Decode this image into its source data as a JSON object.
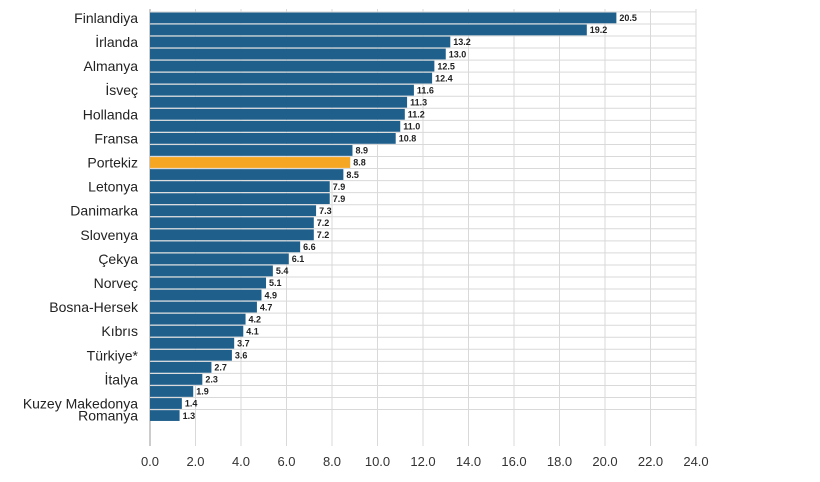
{
  "chart_data": {
    "type": "bar",
    "orientation": "horizontal",
    "title": "",
    "xlabel": "",
    "ylabel": "",
    "xlim": [
      0,
      24
    ],
    "ticks": [
      "0.0",
      "2.0",
      "4.0",
      "6.0",
      "8.0",
      "10.0",
      "12.0",
      "14.0",
      "16.0",
      "18.0",
      "20.0",
      "22.0",
      "24.0"
    ],
    "grid": true,
    "colors": {
      "default": "#1f5f8b",
      "highlight": "#f5a623"
    },
    "bars": [
      {
        "label": "Finlandiya",
        "value": 20.5,
        "value_label": "20.5"
      },
      {
        "label": "",
        "value": 19.2,
        "value_label": "19.2"
      },
      {
        "label": "İrlanda",
        "value": 13.2,
        "value_label": "13.2"
      },
      {
        "label": "",
        "value": 13.0,
        "value_label": "13.0"
      },
      {
        "label": "Almanya",
        "value": 12.5,
        "value_label": "12.5"
      },
      {
        "label": "",
        "value": 12.4,
        "value_label": "12.4"
      },
      {
        "label": "İsveç",
        "value": 11.6,
        "value_label": "11.6"
      },
      {
        "label": "",
        "value": 11.3,
        "value_label": "11.3"
      },
      {
        "label": "Hollanda",
        "value": 11.2,
        "value_label": "11.2"
      },
      {
        "label": "",
        "value": 11.0,
        "value_label": "11.0"
      },
      {
        "label": "Fransa",
        "value": 10.8,
        "value_label": "10.8"
      },
      {
        "label": "",
        "value": 8.9,
        "value_label": "8.9"
      },
      {
        "label": "Portekiz",
        "value": 8.8,
        "value_label": "8.8",
        "highlight": true
      },
      {
        "label": "",
        "value": 8.5,
        "value_label": "8.5"
      },
      {
        "label": "Letonya",
        "value": 7.9,
        "value_label": "7.9"
      },
      {
        "label": "",
        "value": 7.9,
        "value_label": "7.9"
      },
      {
        "label": "Danimarka",
        "value": 7.3,
        "value_label": "7.3"
      },
      {
        "label": "",
        "value": 7.2,
        "value_label": "7.2"
      },
      {
        "label": "Slovenya",
        "value": 7.2,
        "value_label": "7.2"
      },
      {
        "label": "",
        "value": 6.6,
        "value_label": "6.6"
      },
      {
        "label": "Çekya",
        "value": 6.1,
        "value_label": "6.1"
      },
      {
        "label": "",
        "value": 5.4,
        "value_label": "5.4"
      },
      {
        "label": "Norveç",
        "value": 5.1,
        "value_label": "5.1"
      },
      {
        "label": "",
        "value": 4.9,
        "value_label": "4.9"
      },
      {
        "label": "Bosna-Hersek",
        "value": 4.7,
        "value_label": "4.7"
      },
      {
        "label": "",
        "value": 4.2,
        "value_label": "4.2"
      },
      {
        "label": "Kıbrıs",
        "value": 4.1,
        "value_label": "4.1"
      },
      {
        "label": "",
        "value": 3.7,
        "value_label": "3.7"
      },
      {
        "label": "Türkiye*",
        "value": 3.6,
        "value_label": "3.6"
      },
      {
        "label": "",
        "value": 2.7,
        "value_label": "2.7"
      },
      {
        "label": "İtalya",
        "value": 2.3,
        "value_label": "2.3"
      },
      {
        "label": "",
        "value": 1.9,
        "value_label": "1.9"
      },
      {
        "label": "Kuzey Makedonya",
        "value": 1.4,
        "value_label": "1.4"
      },
      {
        "label": "Romanya",
        "value": 1.3,
        "value_label": "1.3"
      }
    ]
  }
}
